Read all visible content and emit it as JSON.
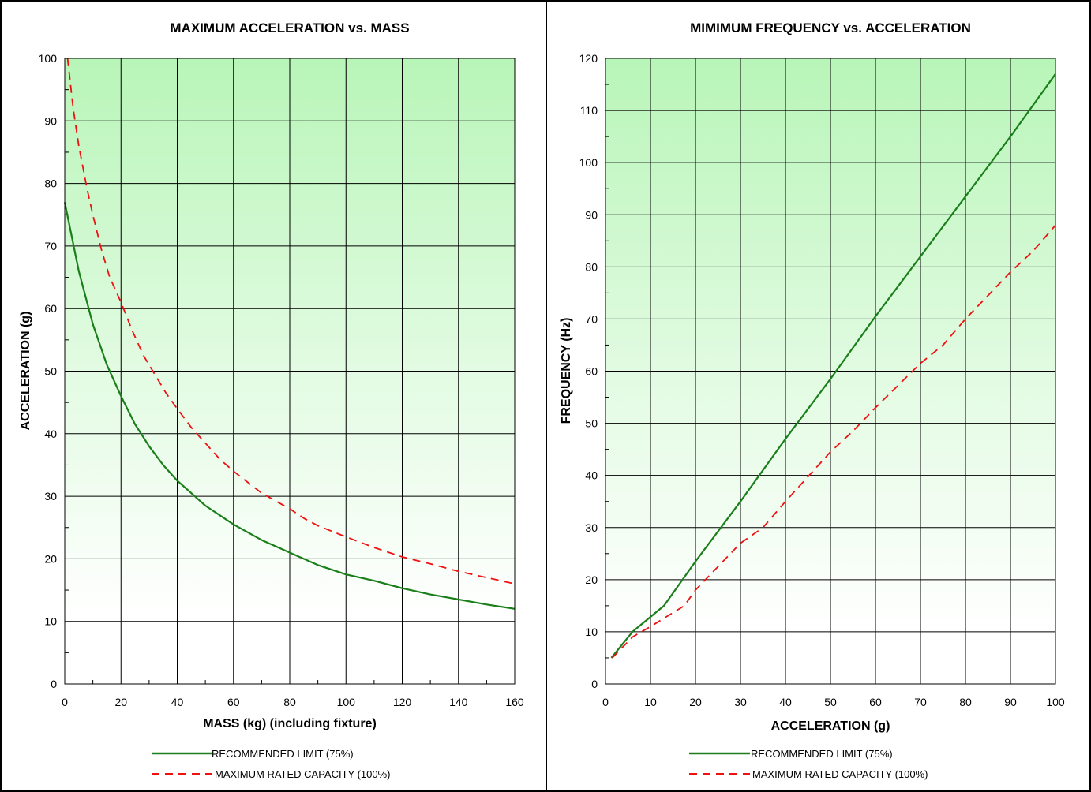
{
  "colors": {
    "recommended": "#1a7f1a",
    "maximum": "#ee1111",
    "fill_top": "#b8f5b8",
    "grid": "#000000"
  },
  "chart_data": [
    {
      "type": "line",
      "title": "MAXIMUM ACCELERATION vs. MASS",
      "xlabel": "MASS (kg) (including fixture)",
      "ylabel": "ACCELERATION (g)",
      "xlim": [
        0,
        160
      ],
      "ylim": [
        0,
        100
      ],
      "xticks": [
        0,
        20,
        40,
        60,
        80,
        100,
        120,
        140,
        160
      ],
      "yticks": [
        0,
        10,
        20,
        30,
        40,
        50,
        60,
        70,
        80,
        90,
        100
      ],
      "xtick_labels": [
        "0",
        "20",
        "40",
        "60",
        "80",
        "100",
        "120",
        "140",
        "160"
      ],
      "ytick_labels": [
        "0",
        "10",
        "20",
        "30",
        "40",
        "50",
        "60",
        "70",
        "80",
        "90",
        "100"
      ],
      "grid": true,
      "legend_position": "bottom",
      "series": [
        {
          "name": "RECOMMENDED LIMIT (75%)",
          "style": "solid",
          "x": [
            0,
            5,
            10,
            15,
            20,
            25,
            30,
            35,
            40,
            45,
            50,
            60,
            70,
            80,
            90,
            100,
            110,
            120,
            130,
            140,
            150,
            160
          ],
          "y": [
            77,
            66,
            57.5,
            51,
            46,
            41.5,
            38,
            35,
            32.5,
            30.5,
            28.5,
            25.5,
            23,
            21,
            19,
            17.5,
            16.5,
            15.3,
            14.3,
            13.5,
            12.7,
            12
          ]
        },
        {
          "name": "MAXIMUM RATED CAPACITY (100%)",
          "style": "dashed",
          "x": [
            1,
            3,
            5,
            8,
            10,
            13,
            16,
            20,
            24,
            28,
            32,
            36,
            40,
            45,
            50,
            55,
            60,
            70,
            80,
            85,
            90,
            100,
            110,
            120,
            130,
            140,
            150,
            160
          ],
          "y": [
            100,
            92,
            86,
            79,
            75,
            69.5,
            65,
            61,
            56.5,
            52.5,
            49.5,
            46.5,
            44,
            41,
            38.5,
            36,
            34,
            30.5,
            28,
            26.5,
            25.3,
            23.5,
            21.8,
            20.3,
            19.2,
            18,
            17,
            16
          ]
        }
      ]
    },
    {
      "type": "line",
      "title": "MIMIMUM FREQUENCY vs. ACCELERATION",
      "xlabel": "ACCELERATION (g)",
      "ylabel": "FREQUENCY (Hz)",
      "xlim": [
        0,
        100
      ],
      "ylim": [
        0,
        120
      ],
      "xticks": [
        0,
        10,
        20,
        30,
        40,
        50,
        60,
        70,
        80,
        90,
        100
      ],
      "yticks": [
        0,
        10,
        20,
        30,
        40,
        50,
        60,
        70,
        80,
        90,
        100,
        110,
        120
      ],
      "xtick_labels": [
        "0",
        "10",
        "20",
        "30",
        "40",
        "50",
        "60",
        "70",
        "80",
        "90",
        "100"
      ],
      "ytick_labels": [
        "0",
        "10",
        "20",
        "30",
        "40",
        "50",
        "60",
        "70",
        "80",
        "90",
        "100",
        "110",
        "120"
      ],
      "grid": true,
      "legend_position": "bottom",
      "series": [
        {
          "name": "RECOMMENDED LIMIT (75%)",
          "style": "solid",
          "x": [
            1.3,
            6,
            13,
            20,
            30,
            40,
            50,
            60,
            70,
            80,
            90,
            100
          ],
          "y": [
            5,
            10,
            15,
            23.5,
            35,
            47,
            58.5,
            70.5,
            82,
            93.5,
            105,
            117
          ]
        },
        {
          "name": "MAXIMUM RATED CAPACITY (100%)",
          "style": "dashed",
          "x": [
            1.5,
            6,
            10,
            17.5,
            20,
            30,
            35,
            40,
            50,
            55,
            60,
            70,
            75,
            80,
            90,
            95,
            100
          ],
          "y": [
            5,
            9,
            11,
            15,
            18,
            27,
            30,
            35,
            44.5,
            48.5,
            53,
            61.5,
            65,
            70,
            79,
            83,
            88
          ]
        }
      ]
    }
  ]
}
